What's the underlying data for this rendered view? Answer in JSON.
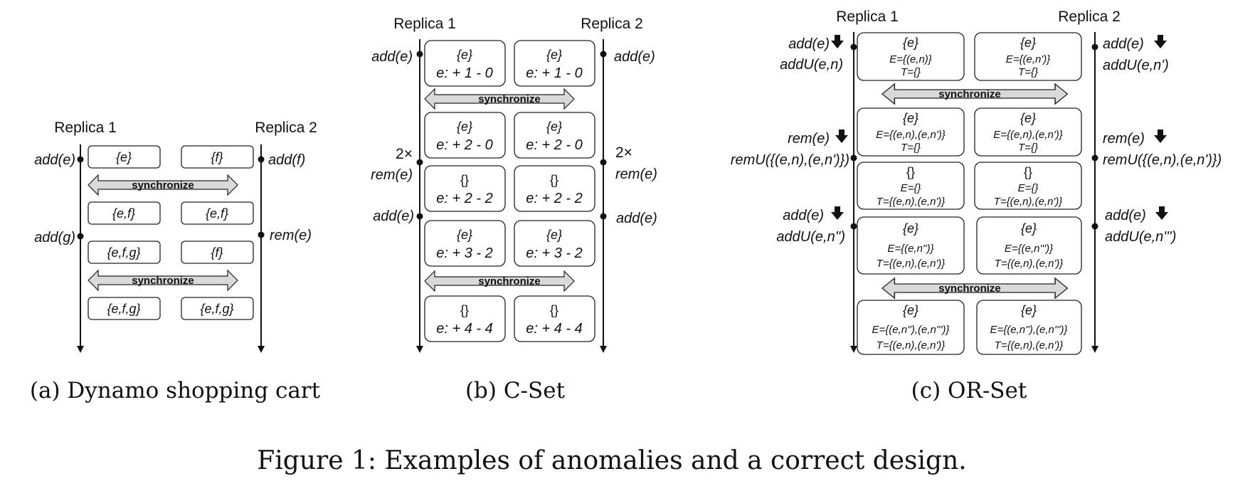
{
  "panel_a": {
    "replica1": "Replica 1",
    "replica2": "Replica 2",
    "ops_left": [
      "add(e)",
      "add(g)"
    ],
    "ops_right": [
      "add(f)",
      "rem(e)"
    ],
    "boxes": [
      [
        "{e}",
        "{f}"
      ],
      [
        "{e,f}",
        "{e,f}"
      ],
      [
        "{e,f,g}",
        "{f}"
      ],
      [
        "{e,f,g}",
        "{e,f,g}"
      ]
    ],
    "sync": "synchronize",
    "caption": "(a) Dynamo shopping cart"
  },
  "panel_b": {
    "replica1": "Replica 1",
    "replica2": "Replica 2",
    "ops_left": [
      "add(e)",
      "2×",
      "rem(e)",
      "add(e)"
    ],
    "ops_right": [
      "add(e)",
      "2×",
      "rem(e)",
      "add(e)"
    ],
    "boxes": [
      [
        "{e}",
        "e: + 1 - 0",
        "{e}",
        "e: + 1 - 0"
      ],
      [
        "{e}",
        "e: + 2 - 0",
        "{e}",
        "e: + 2 - 0"
      ],
      [
        "{}",
        "e: + 2 - 2",
        "{}",
        "e: + 2 - 2"
      ],
      [
        "{e}",
        "e: + 3 - 2",
        "{e}",
        "e: + 3 - 2"
      ],
      [
        "{}",
        "e: + 4 - 4",
        "{}",
        "e: + 4 - 4"
      ]
    ],
    "sync": "synchronize",
    "caption": "(b) C-Set"
  },
  "panel_c": {
    "replica1": "Replica 1",
    "replica2": "Replica 2",
    "ops_left": [
      "add(e)",
      "addU(e,n)",
      "rem(e)",
      "remU({(e,n),(e,n')})",
      "add(e)",
      "addU(e,n'')"
    ],
    "ops_right": [
      "add(e)",
      "addU(e,n')",
      "rem(e)",
      "remU({(e,n),(e,n')})",
      "add(e)",
      "addU(e,n''')"
    ],
    "boxes": [
      [
        "{e}",
        "E={(e,n)}",
        "T={}",
        "{e}",
        "E={(e,n')}",
        "T={}"
      ],
      [
        "{e}",
        "E={(e,n),(e,n')}",
        "T={}",
        "{e}",
        "E={(e,n),(e,n')}",
        "T={}"
      ],
      [
        "{}",
        "E={}",
        "T={(e,n),(e,n')}",
        "{}",
        "E={}",
        "T={(e,n),(e,n')}"
      ],
      [
        "{e}",
        "E={(e,n'')}",
        "T={(e,n),(e,n')}",
        "{e}",
        "E={(e,n''')}",
        "T={(e,n),(e,n')}"
      ],
      [
        "{e}",
        "E={(e,n''),(e,n''')}",
        "T={(e,n),(e,n')}",
        "{e}",
        "E={(e,n''),(e,n''')}",
        "T={(e,n),(e,n')}"
      ]
    ],
    "sync": "synchronize",
    "caption": "(c) OR-Set"
  },
  "figure_caption": "Figure 1: Examples of anomalies and a correct design."
}
